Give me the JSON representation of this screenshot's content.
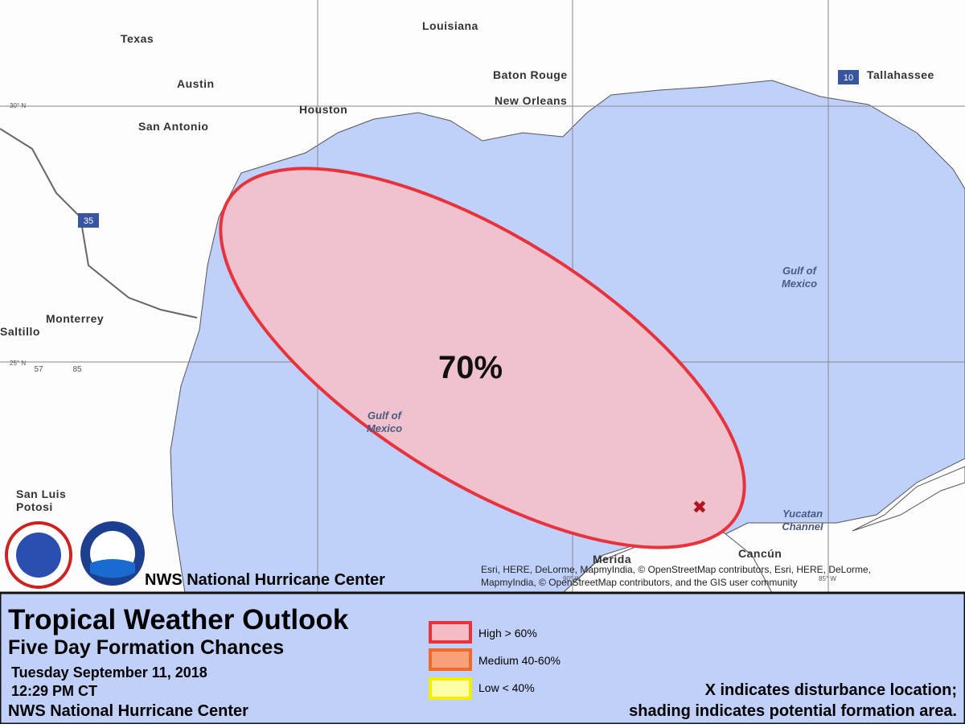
{
  "map": {
    "places": [
      "Texas",
      "Louisiana",
      "Austin",
      "Baton Rouge",
      "New Orleans",
      "Houston",
      "San Antonio",
      "Tallahassee",
      "Monterrey",
      "Saltillo",
      "San Luis",
      "Potosi",
      "Merida",
      "Cancún"
    ],
    "highways": [
      "10",
      "35",
      "57",
      "85"
    ],
    "water_labels": [
      [
        "Gulf of",
        "Mexico"
      ],
      [
        "Gulf of",
        "Mexico"
      ],
      [
        "Yucatan",
        "Channel"
      ]
    ],
    "grid_labels": [
      "30° N",
      "25° N",
      "90° W",
      "85° W"
    ],
    "probability": "70%",
    "agency_overlay": "NWS National Hurricane Center",
    "attribution": [
      "Esri, HERE, DeLorme, MapmyIndia, © OpenStreetMap contributors, Esri, HERE, DeLorme,",
      "MapmyIndia, © OpenStreetMap contributors, and the GIS user community"
    ],
    "disturbance_marker": "✖"
  },
  "footer": {
    "title": "Tropical Weather Outlook",
    "subtitle": "Five Day Formation Chances",
    "date": "Tuesday September 11, 2018",
    "time": "12:29 PM CT",
    "agency": "NWS National Hurricane Center",
    "legend": [
      "High > 60%",
      "Medium 40-60%",
      "Low < 40%"
    ],
    "note": [
      "X indicates disturbance location;",
      "shading indicates potential formation area."
    ]
  }
}
